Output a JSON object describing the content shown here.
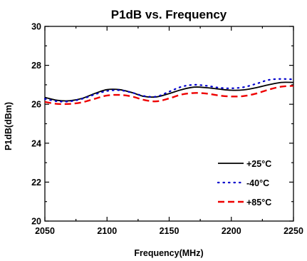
{
  "chart_data": {
    "type": "line",
    "title": "P1dB vs. Frequency",
    "xlabel": "Frequency(MHz)",
    "ylabel": "P1dB(dBm)",
    "xlim": [
      2050,
      2250
    ],
    "ylim": [
      20,
      30
    ],
    "x_ticks": [
      2050,
      2100,
      2150,
      2200,
      2250
    ],
    "y_ticks": [
      20,
      22,
      24,
      26,
      28,
      30
    ],
    "grid": false,
    "legend_position": "bottom-right",
    "series": [
      {
        "name": "+25°C",
        "color": "#000000",
        "style": "solid",
        "x": [
          2050,
          2060,
          2070,
          2080,
          2090,
          2100,
          2110,
          2120,
          2130,
          2140,
          2150,
          2160,
          2170,
          2180,
          2190,
          2200,
          2210,
          2220,
          2230,
          2240,
          2250
        ],
        "y": [
          26.35,
          26.2,
          26.18,
          26.3,
          26.55,
          26.75,
          26.75,
          26.6,
          26.4,
          26.38,
          26.55,
          26.75,
          26.88,
          26.85,
          26.78,
          26.72,
          26.74,
          26.85,
          27.0,
          27.12,
          27.12
        ]
      },
      {
        "name": "-40°C",
        "color": "#0000cc",
        "style": "dotted",
        "x": [
          2050,
          2060,
          2070,
          2080,
          2090,
          2100,
          2110,
          2120,
          2130,
          2140,
          2150,
          2160,
          2170,
          2180,
          2190,
          2200,
          2210,
          2220,
          2230,
          2240,
          2250
        ],
        "y": [
          26.28,
          26.15,
          26.15,
          26.28,
          26.5,
          26.68,
          26.72,
          26.6,
          26.42,
          26.4,
          26.65,
          26.9,
          27.0,
          26.95,
          26.85,
          26.82,
          26.88,
          27.05,
          27.25,
          27.3,
          27.28
        ]
      },
      {
        "name": "+85°C",
        "color": "#ee0000",
        "style": "dashed",
        "x": [
          2050,
          2060,
          2070,
          2080,
          2090,
          2100,
          2110,
          2120,
          2130,
          2140,
          2150,
          2160,
          2170,
          2180,
          2190,
          2200,
          2210,
          2220,
          2230,
          2240,
          2250
        ],
        "y": [
          26.12,
          26.02,
          26.02,
          26.1,
          26.28,
          26.45,
          26.48,
          26.4,
          26.22,
          26.15,
          26.3,
          26.5,
          26.58,
          26.55,
          26.45,
          26.4,
          26.42,
          26.55,
          26.75,
          26.9,
          26.95
        ]
      }
    ]
  }
}
